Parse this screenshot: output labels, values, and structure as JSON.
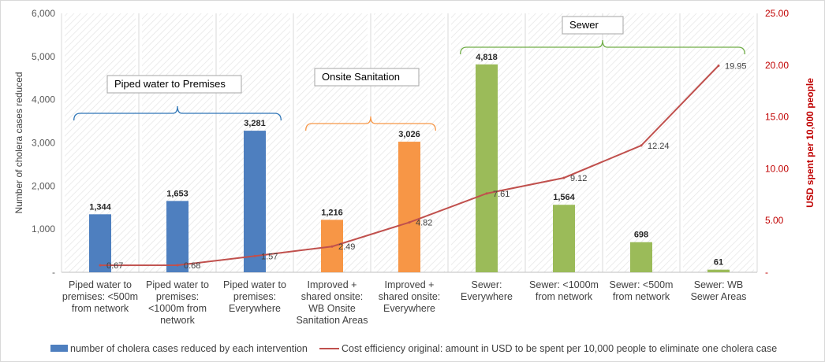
{
  "chart_data": {
    "type": "bar",
    "categories": [
      [
        "Piped water to",
        "premises: <500m",
        "from network"
      ],
      [
        "Piped water to",
        "premises:",
        "<1000m from",
        "network"
      ],
      [
        "Piped water to",
        "premises:",
        "Everywhere"
      ],
      [
        "Improved +",
        "shared onsite:",
        "WB Onsite",
        "Sanitation Areas"
      ],
      [
        "Improved +",
        "shared onsite:",
        "Everywhere"
      ],
      [
        "Sewer:",
        "Everywhere"
      ],
      [
        "Sewer: <1000m",
        "from network"
      ],
      [
        "Sewer: <500m",
        "from network"
      ],
      [
        "Sewer: WB",
        "Sewer Areas"
      ]
    ],
    "series": [
      {
        "name": "number of cholera cases reduced by each intervention",
        "kind": "bar",
        "axis": "left",
        "values": [
          1344,
          1653,
          3281,
          1216,
          3026,
          4818,
          1564,
          698,
          61
        ],
        "labels": [
          "1,344",
          "1,653",
          "3,281",
          "1,216",
          "3,026",
          "4,818",
          "1,564",
          "698",
          "61"
        ],
        "colors": [
          "#4e7fbf",
          "#4e7fbf",
          "#4e7fbf",
          "#f79646",
          "#f79646",
          "#9bbb59",
          "#9bbb59",
          "#9bbb59",
          "#9bbb59"
        ]
      },
      {
        "name": "Cost efficiency original: amount in USD to be spent per 10,000 people to eliminate one cholera case",
        "kind": "line",
        "axis": "right",
        "color": "#c0504d",
        "values": [
          0.67,
          0.68,
          1.57,
          2.49,
          4.82,
          7.61,
          9.12,
          12.24,
          19.95
        ],
        "labels": [
          "0.67",
          "0.68",
          "1.57",
          "2.49",
          "4.82",
          "7.61",
          "9.12",
          "12.24",
          "19.95"
        ]
      }
    ],
    "left_axis": {
      "label": "Number of cholera cases reduced",
      "ylim": [
        0,
        6000
      ],
      "ticks": [
        0,
        1000,
        2000,
        3000,
        4000,
        5000,
        6000
      ],
      "tick_labels": [
        "-",
        "1,000",
        "2,000",
        "3,000",
        "4,000",
        "5,000",
        "6,000"
      ]
    },
    "right_axis": {
      "label": "USD spent per 10,000 people",
      "ylim": [
        0,
        25
      ],
      "ticks": [
        0,
        5,
        10,
        15,
        20,
        25
      ],
      "tick_labels": [
        "-",
        "5.00",
        "10.00",
        "15.00",
        "20.00",
        "25.00"
      ],
      "color": "#c00000"
    },
    "groups": [
      {
        "label": "Piped water to Premises",
        "from": 0,
        "to": 2,
        "color": "#2e75b6"
      },
      {
        "label": "Onsite Sanitation",
        "from": 3,
        "to": 4,
        "color": "#f79646"
      },
      {
        "label": "Sewer",
        "from": 5,
        "to": 8,
        "color": "#70ad47"
      }
    ],
    "grid": "vertical-hatched",
    "legend_position": "bottom"
  }
}
